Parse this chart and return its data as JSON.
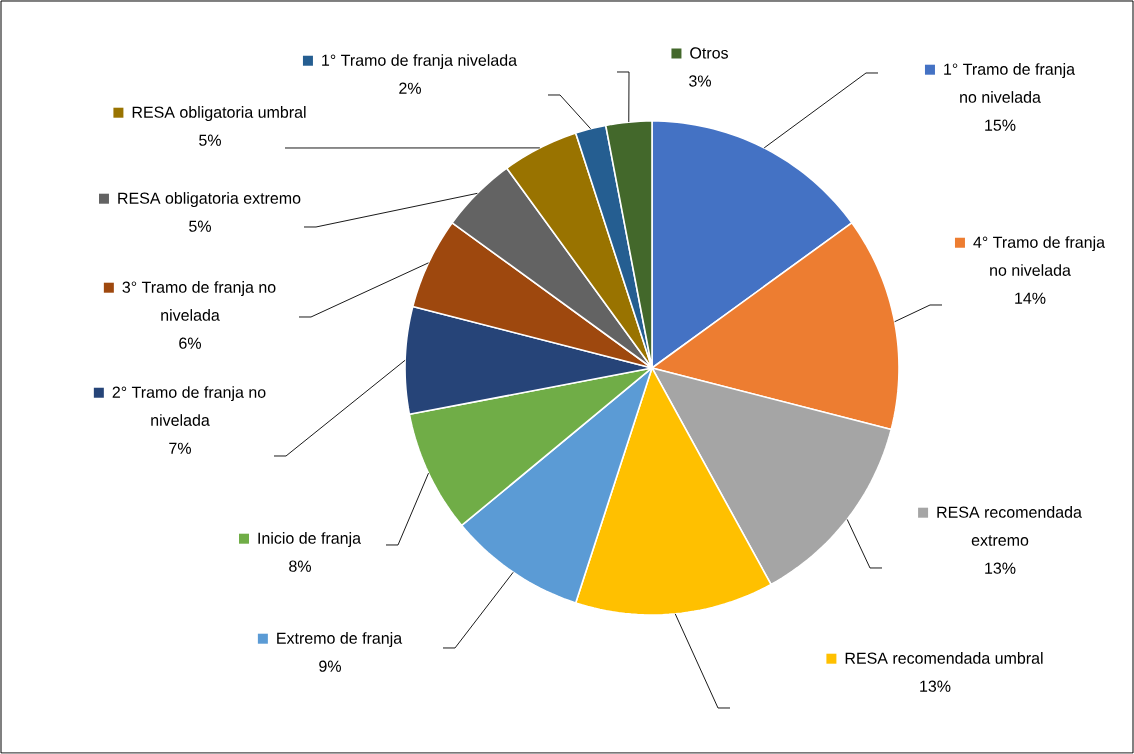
{
  "chart_data": {
    "type": "pie",
    "categories": [
      "1° Tramo de franja no nivelada",
      "4° Tramo de franja no nivelada",
      "RESA recomendada extremo",
      "RESA recomendada umbral",
      "Extremo de franja",
      "Inicio de franja",
      "2° Tramo de franja no nivelada",
      "3° Tramo de franja no nivelada",
      "RESA obligatoria extremo",
      "RESA obligatoria umbral",
      "1° Tramo de franja nivelada",
      "Otros"
    ],
    "values": [
      15,
      14,
      13,
      13,
      9,
      8,
      7,
      6,
      5,
      5,
      2,
      3
    ],
    "value_labels": [
      "15%",
      "14%",
      "13%",
      "13%",
      "9%",
      "8%",
      "7%",
      "6%",
      "5%",
      "5%",
      "2%",
      "3%"
    ],
    "legend": "top left",
    "colors": [
      "#4472c4",
      "#ed7d31",
      "#a5a5a5",
      "#ffc000",
      "#5b9bd5",
      "#70ad47",
      "#264478",
      "#9e480e",
      "#636363",
      "#997300",
      "#255e91",
      "#43682b"
    ]
  }
}
